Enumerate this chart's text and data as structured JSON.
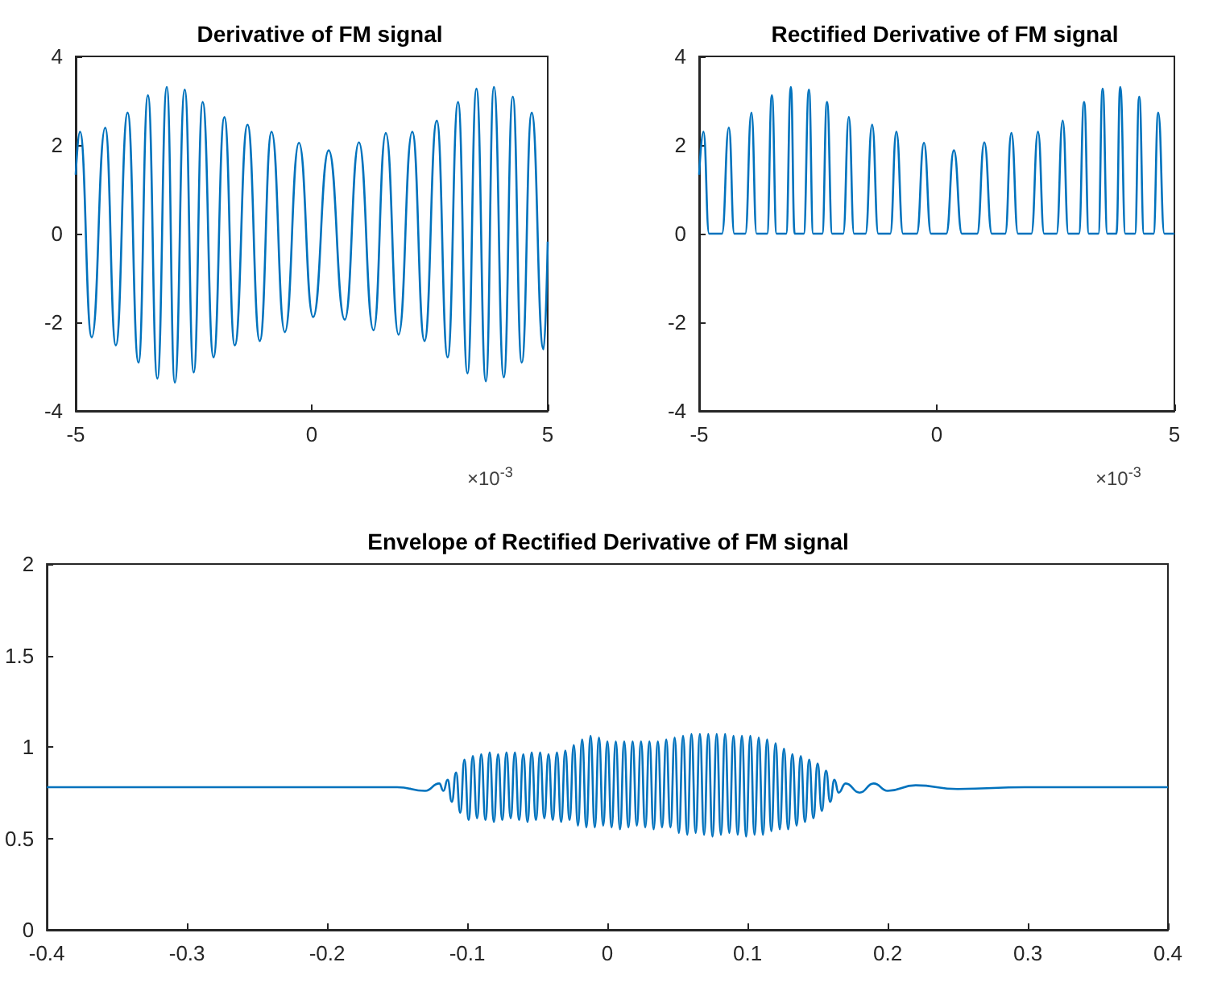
{
  "chart_data": [
    {
      "type": "line",
      "title": "Derivative of FM signal",
      "xlim": [
        -5,
        5
      ],
      "xticks": [
        -5,
        0,
        5
      ],
      "ylim": [
        -4,
        4
      ],
      "yticks": [
        -4,
        -2,
        0,
        2,
        4
      ],
      "annotations": [
        "×10$^{-3}$"
      ],
      "series": [
        {
          "color": "#0072bd",
          "x": [
            -5,
            -4.91,
            -4.66,
            -4.375,
            -4.15,
            -3.9,
            -3.67,
            -3.47,
            -3.27,
            -3.07,
            -2.9,
            -2.69,
            -2.5,
            -2.31,
            -2.08,
            -1.85,
            -1.63,
            -1.36,
            -1.1,
            -0.85,
            -0.57,
            -0.27,
            0.03,
            0.36,
            0.7,
            1,
            1.31,
            1.57,
            1.84,
            2.13,
            2.39,
            2.65,
            2.88,
            3.1,
            3.3,
            3.49,
            3.69,
            3.86,
            4.07,
            4.26,
            4.45,
            4.66,
            4.91,
            5
          ],
          "values": [
            1.33,
            2.3,
            -2.34,
            2.39,
            -2.52,
            2.73,
            -2.91,
            3.12,
            -3.27,
            3.31,
            -3.36,
            3.25,
            -3.13,
            2.97,
            -2.79,
            2.63,
            -2.52,
            2.46,
            -2.42,
            2.3,
            -2.22,
            2.05,
            -1.88,
            1.88,
            -1.94,
            2.06,
            -2.18,
            2.27,
            -2.28,
            2.3,
            -2.42,
            2.55,
            -2.79,
            2.97,
            -3.15,
            3.27,
            -3.33,
            3.31,
            -3.24,
            3.09,
            -2.91,
            2.73,
            -2.61,
            -0.18
          ]
        }
      ]
    },
    {
      "type": "line",
      "title": "Rectified Derivative of FM signal",
      "xlim": [
        -5,
        5
      ],
      "xticks": [
        -5,
        0,
        5
      ],
      "ylim": [
        -4,
        4
      ],
      "yticks": [
        -4,
        -2,
        0,
        2,
        4
      ],
      "annotations": [
        "×10$^{-3}$"
      ],
      "series": [
        {
          "color": "#0072bd",
          "x": [
            -5,
            -4.91,
            -4.79,
            -4.52,
            -4.375,
            -4.26,
            -4.03,
            -3.9,
            -3.79,
            -3.57,
            -3.47,
            -3.37,
            -3.17,
            -3.07,
            -2.99,
            -2.8,
            -2.69,
            -2.6,
            -2.41,
            -2.31,
            -2.2,
            -1.97,
            -1.85,
            -1.74,
            -1.5,
            -1.36,
            -1.23,
            -0.98,
            -0.85,
            -0.71,
            -0.42,
            -0.27,
            -0.12,
            0.2,
            0.36,
            0.53,
            0.85,
            1,
            1.16,
            1.44,
            1.57,
            1.71,
            1.99,
            2.13,
            2.26,
            2.52,
            2.65,
            2.77,
            2.99,
            3.1,
            3.2,
            3.4,
            3.49,
            3.59,
            3.78,
            3.86,
            3.97,
            4.17,
            4.26,
            4.36,
            4.56,
            4.66,
            4.79,
            5
          ],
          "values": [
            1.33,
            2.3,
            0,
            0,
            2.39,
            0,
            0,
            2.73,
            0,
            0,
            3.12,
            0,
            0,
            3.31,
            0,
            0,
            3.25,
            0,
            0,
            2.97,
            0,
            0,
            2.63,
            0,
            0,
            2.46,
            0,
            0,
            2.3,
            0,
            0,
            2.05,
            0,
            0,
            1.88,
            0,
            0,
            2.06,
            0,
            0,
            2.27,
            0,
            0,
            2.3,
            0,
            0,
            2.55,
            0,
            0,
            2.97,
            0,
            0,
            3.27,
            0,
            0,
            3.31,
            0,
            0,
            3.09,
            0,
            0,
            2.73,
            0,
            0
          ]
        }
      ]
    },
    {
      "type": "line",
      "title": "Envelope of Rectified Derivative of FM signal",
      "xlim": [
        -0.4,
        0.4
      ],
      "xticks": [
        -0.4,
        -0.3,
        -0.2,
        -0.1,
        0,
        0.1,
        0.2,
        0.3,
        0.4
      ],
      "ylim": [
        0,
        2
      ],
      "yticks": [
        0,
        0.5,
        1,
        1.5,
        2
      ],
      "series": [
        {
          "color": "#0072bd",
          "x": [
            -0.4,
            -0.3,
            -0.2,
            -0.15,
            -0.13,
            -0.12,
            -0.117,
            -0.114,
            -0.111,
            -0.108,
            -0.105,
            -0.102,
            -0.099,
            -0.096,
            -0.093,
            -0.09,
            -0.087,
            -0.084,
            -0.081,
            -0.078,
            -0.075,
            -0.072,
            -0.069,
            -0.066,
            -0.063,
            -0.06,
            -0.057,
            -0.054,
            -0.051,
            -0.048,
            -0.045,
            -0.042,
            -0.039,
            -0.036,
            -0.033,
            -0.03,
            -0.027,
            -0.024,
            -0.021,
            -0.018,
            -0.015,
            -0.012,
            -0.009,
            -0.006,
            -0.003,
            0,
            0.003,
            0.006,
            0.009,
            0.012,
            0.015,
            0.018,
            0.021,
            0.024,
            0.027,
            0.03,
            0.033,
            0.036,
            0.039,
            0.042,
            0.045,
            0.048,
            0.051,
            0.054,
            0.057,
            0.06,
            0.063,
            0.066,
            0.069,
            0.072,
            0.075,
            0.078,
            0.081,
            0.084,
            0.087,
            0.09,
            0.093,
            0.096,
            0.099,
            0.102,
            0.105,
            0.108,
            0.111,
            0.114,
            0.117,
            0.12,
            0.123,
            0.126,
            0.129,
            0.132,
            0.135,
            0.138,
            0.141,
            0.144,
            0.147,
            0.15,
            0.153,
            0.156,
            0.159,
            0.162,
            0.165,
            0.17,
            0.18,
            0.19,
            0.2,
            0.22,
            0.25,
            0.3,
            0.4
          ],
          "values": [
            0.78,
            0.78,
            0.78,
            0.78,
            0.76,
            0.8,
            0.76,
            0.82,
            0.7,
            0.86,
            0.64,
            0.93,
            0.6,
            0.95,
            0.61,
            0.96,
            0.6,
            0.97,
            0.59,
            0.96,
            0.6,
            0.97,
            0.61,
            0.97,
            0.6,
            0.96,
            0.59,
            0.97,
            0.6,
            0.97,
            0.61,
            0.96,
            0.6,
            0.97,
            0.59,
            0.98,
            0.6,
            1.01,
            0.57,
            1.04,
            0.56,
            1.06,
            0.56,
            1.05,
            0.57,
            1.03,
            0.56,
            1.03,
            0.55,
            1.03,
            0.56,
            1.03,
            0.57,
            1.03,
            0.56,
            1.03,
            0.55,
            1.03,
            0.56,
            1.04,
            0.56,
            1.05,
            0.53,
            1.06,
            0.52,
            1.07,
            0.53,
            1.07,
            0.52,
            1.07,
            0.51,
            1.07,
            0.52,
            1.07,
            0.53,
            1.06,
            0.52,
            1.06,
            0.51,
            1.06,
            0.52,
            1.05,
            0.52,
            1.04,
            0.54,
            1.02,
            0.55,
            0.99,
            0.55,
            0.96,
            0.57,
            0.95,
            0.59,
            0.93,
            0.61,
            0.91,
            0.65,
            0.87,
            0.7,
            0.82,
            0.75,
            0.8,
            0.75,
            0.8,
            0.76,
            0.79,
            0.77,
            0.78,
            0.78
          ]
        }
      ]
    }
  ]
}
